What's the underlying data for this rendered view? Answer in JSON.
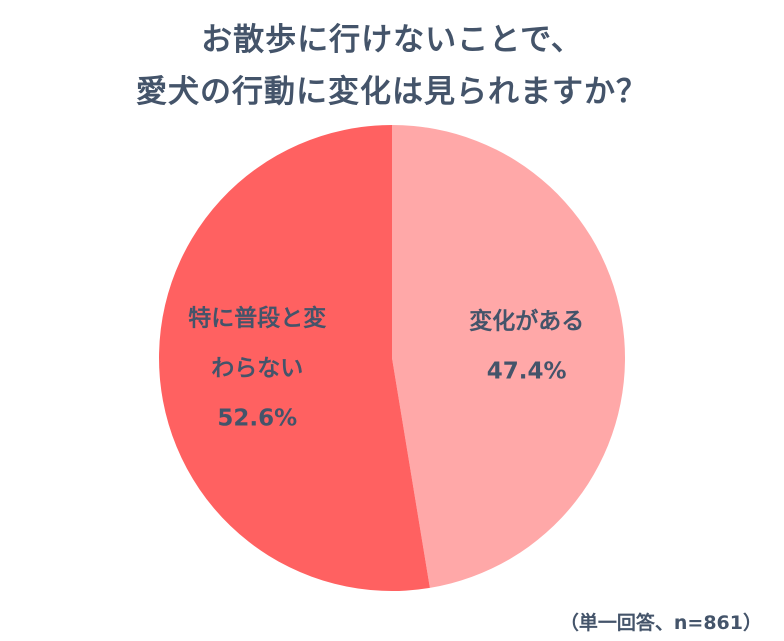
{
  "title": {
    "line1": "お散歩に行けないことで、",
    "line2": "愛犬の行動に変化は見られますか？"
  },
  "note": "（単一回答、n=861）",
  "colors": {
    "change": "#ffa8a8",
    "no_change": "#ff6161",
    "text": "#44546a"
  },
  "chart_data": {
    "type": "pie",
    "title": "お散歩に行けないことで、愛犬の行動に変化は見られますか？",
    "unit": "%",
    "slices": [
      {
        "label_lines": [
          "変化がある"
        ],
        "label": "変化がある",
        "value": 47.4,
        "value_label": "47.4%",
        "color": "#ffa8a8"
      },
      {
        "label_lines": [
          "特に普段と変",
          "わらない"
        ],
        "label": "特に普段と変わらない",
        "value": 52.6,
        "value_label": "52.6%",
        "color": "#ff6161"
      }
    ],
    "start_angle_deg": -90,
    "direction": "clockwise",
    "legend": "none"
  }
}
